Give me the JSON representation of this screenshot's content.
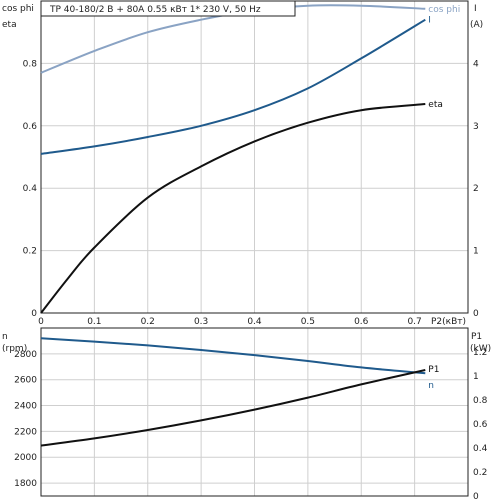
{
  "title": "TP 40-180/2 B + 80A    0.55 кВт   1* 230 V, 50 Hz",
  "top_panel": {
    "left_axis_label_1": "cos phi",
    "left_axis_label_2": "eta",
    "right_axis_label_1": "I",
    "right_axis_label_2": "(A)",
    "x_axis_label": "P2(кВт)"
  },
  "bottom_panel": {
    "left_axis_label_1": "n",
    "left_axis_label_2": "(rpm)",
    "right_axis_label_1": "P1",
    "right_axis_label_2": "(kW)"
  },
  "colors": {
    "cosphi": "#8aa3c4",
    "current": "#1f5a8c",
    "eta": "#111111",
    "speed": "#1f5a8c",
    "p1": "#111111",
    "grid": "#cfcfcf",
    "frame": "#222222"
  },
  "chart_data": [
    {
      "type": "line",
      "x_label": "P2(кВт)",
      "xlim": [
        0,
        0.8
      ],
      "x_ticks": [
        0,
        0.1,
        0.2,
        0.3,
        0.4,
        0.5,
        0.6,
        0.7
      ],
      "x_tick_labels": [
        "0",
        "0.1",
        "0.2",
        "0.3",
        "0.4",
        "0.5",
        "0.6",
        "0.7"
      ],
      "grid": true,
      "left_axis": {
        "label": "cos phi / eta",
        "ylim": [
          0,
          1.0
        ],
        "ticks": [
          0,
          0.2,
          0.4,
          0.6,
          0.8
        ],
        "tick_labels": [
          "0",
          "0.2",
          "0.4",
          "0.6",
          "0.8"
        ]
      },
      "right_axis": {
        "label": "I (A)",
        "ylim": [
          0,
          5
        ],
        "ticks": [
          0,
          1,
          2,
          3,
          4
        ],
        "tick_labels": [
          "0",
          "1",
          "2",
          "3",
          "4"
        ]
      },
      "series": [
        {
          "name": "cos phi",
          "axis": "left",
          "color": "#8aa3c4",
          "x": [
            0,
            0.1,
            0.2,
            0.3,
            0.4,
            0.5,
            0.6,
            0.72
          ],
          "y": [
            0.77,
            0.84,
            0.9,
            0.94,
            0.97,
            0.985,
            0.985,
            0.975
          ]
        },
        {
          "name": "I",
          "axis": "right",
          "color": "#1f5a8c",
          "x": [
            0,
            0.1,
            0.2,
            0.3,
            0.4,
            0.5,
            0.6,
            0.72
          ],
          "y": [
            2.55,
            2.67,
            2.82,
            3.0,
            3.25,
            3.6,
            4.08,
            4.7
          ]
        },
        {
          "name": "eta",
          "axis": "left",
          "color": "#111111",
          "x": [
            0,
            0.05,
            0.1,
            0.2,
            0.3,
            0.4,
            0.5,
            0.6,
            0.72
          ],
          "y": [
            0.0,
            0.11,
            0.21,
            0.37,
            0.47,
            0.55,
            0.61,
            0.65,
            0.67
          ]
        }
      ]
    },
    {
      "type": "line",
      "xlim": [
        0,
        0.8
      ],
      "grid": true,
      "left_axis": {
        "label": "n (rpm)",
        "ylim": [
          1700,
          3000
        ],
        "ticks": [
          1800,
          2000,
          2200,
          2400,
          2600,
          2800
        ],
        "tick_labels": [
          "1800",
          "2000",
          "2200",
          "2400",
          "2600",
          "2800"
        ]
      },
      "right_axis": {
        "label": "P1 (kW)",
        "ylim": [
          0,
          1.4
        ],
        "ticks": [
          0,
          0.2,
          0.4,
          0.6,
          0.8,
          1.0,
          1.2
        ],
        "tick_labels": [
          "0",
          "0.2",
          "0.4",
          "0.6",
          "0.8",
          "1",
          "1.2"
        ]
      },
      "series": [
        {
          "name": "n",
          "axis": "left",
          "color": "#1f5a8c",
          "x": [
            0,
            0.1,
            0.2,
            0.3,
            0.4,
            0.5,
            0.6,
            0.72
          ],
          "y": [
            2920,
            2895,
            2865,
            2830,
            2790,
            2745,
            2695,
            2650
          ]
        },
        {
          "name": "P1",
          "axis": "right",
          "color": "#111111",
          "x": [
            0,
            0.1,
            0.2,
            0.3,
            0.4,
            0.5,
            0.6,
            0.72
          ],
          "y": [
            0.42,
            0.48,
            0.55,
            0.63,
            0.72,
            0.82,
            0.93,
            1.05
          ]
        }
      ]
    }
  ]
}
